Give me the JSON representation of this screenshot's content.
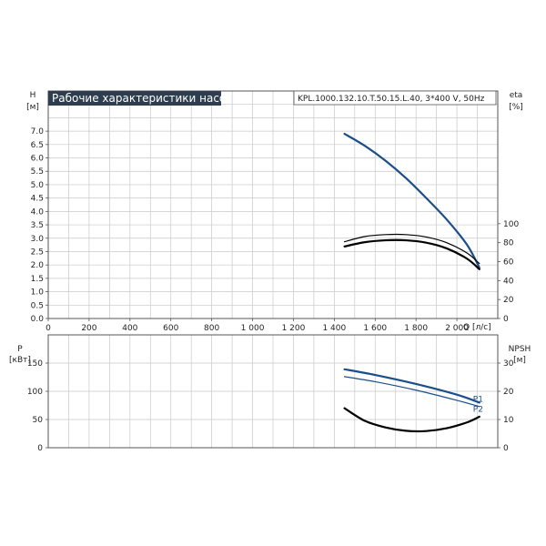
{
  "title": "Рабочие характеристики насоса",
  "model": "KPL.1000.132.10.T.50.15.L.40, 3*400 V, 50Hz",
  "colors": {
    "primary": "#1b4f8a",
    "secondary": "#000000",
    "grid": "#c8c8c8",
    "title_bg": "#2e3e4e"
  },
  "chart_data": [
    {
      "type": "line",
      "xlabel": "Q [л/с]",
      "ylabel_left": "H",
      "ylabel_left_unit": "[м]",
      "ylabel_right": "eta",
      "ylabel_right_unit": "[%]",
      "xlim": [
        0,
        2200
      ],
      "ylim_left": [
        0,
        8.5
      ],
      "ylim_right": [
        0,
        240
      ],
      "xticks": [
        0,
        200,
        400,
        600,
        800,
        1000,
        1200,
        1400,
        1600,
        1800,
        2000
      ],
      "xtick_labels": [
        "0",
        "200",
        "400",
        "600",
        "800",
        "1 000",
        "1 200",
        "1 400",
        "1 600",
        "1 800",
        "2 000"
      ],
      "yticks_left": [
        0,
        0.5,
        1,
        1.5,
        2,
        2.5,
        3,
        3.5,
        4,
        4.5,
        5,
        5.5,
        6,
        6.5,
        7
      ],
      "ytick_labels_left": [
        "0.0",
        "0.5",
        "1.0",
        "1.5",
        "2.0",
        "2.5",
        "3.0",
        "3.5",
        "4.0",
        "4.5",
        "5.0",
        "5.5",
        "6.0",
        "6.5",
        "7.0"
      ],
      "yticks_right": [
        0,
        20,
        40,
        60,
        80,
        100
      ],
      "ytick_labels_right": [
        "0",
        "20",
        "40",
        "60",
        "80",
        "100"
      ],
      "grid": true,
      "series": [
        {
          "axis": "left",
          "color": "#1b4f8a",
          "x": [
            1450,
            1550,
            1650,
            1750,
            1850,
            1950,
            2050,
            2110
          ],
          "y": [
            6.9,
            6.45,
            5.9,
            5.25,
            4.5,
            3.7,
            2.75,
            1.9
          ]
        },
        {
          "axis": "right",
          "color": "#000000",
          "x": [
            1450,
            1550,
            1650,
            1750,
            1850,
            1950,
            2050,
            2110
          ],
          "y": [
            81,
            86.5,
            88.5,
            88.5,
            86,
            80,
            69,
            58
          ]
        },
        {
          "axis": "right",
          "color": "#000000",
          "x": [
            1450,
            1550,
            1650,
            1750,
            1850,
            1950,
            2050,
            2110
          ],
          "y": [
            76,
            80.5,
            82.5,
            82.5,
            80,
            74,
            63,
            52
          ]
        }
      ]
    },
    {
      "type": "line",
      "ylabel_left": "P",
      "ylabel_left_unit": "[кВт]",
      "ylabel_right": "NPSH",
      "ylabel_right_unit": "[м]",
      "xlim": [
        0,
        2200
      ],
      "ylim_left": [
        0,
        200
      ],
      "ylim_right": [
        0,
        40
      ],
      "yticks_left": [
        0,
        50,
        100,
        150
      ],
      "ytick_labels_left": [
        "0",
        "50",
        "100",
        "150"
      ],
      "yticks_right": [
        0,
        10,
        20,
        30
      ],
      "ytick_labels_right": [
        "0",
        "10",
        "20",
        "30"
      ],
      "grid": true,
      "series": [
        {
          "name": "P1",
          "axis": "left",
          "color": "#1b4f8a",
          "x": [
            1450,
            1600,
            1800,
            2000,
            2110
          ],
          "y": [
            139,
            129,
            113,
            94,
            80
          ]
        },
        {
          "name": "P2",
          "axis": "left",
          "color": "#1b4f8a",
          "x": [
            1450,
            1600,
            1800,
            2000,
            2110
          ],
          "y": [
            126,
            117,
            102,
            84,
            73
          ]
        },
        {
          "axis": "right",
          "color": "#000000",
          "x": [
            1450,
            1550,
            1650,
            1750,
            1850,
            1950,
            2050,
            2110
          ],
          "y": [
            14,
            9.5,
            7.2,
            6.0,
            5.9,
            6.9,
            9.0,
            11.0
          ]
        }
      ]
    }
  ]
}
